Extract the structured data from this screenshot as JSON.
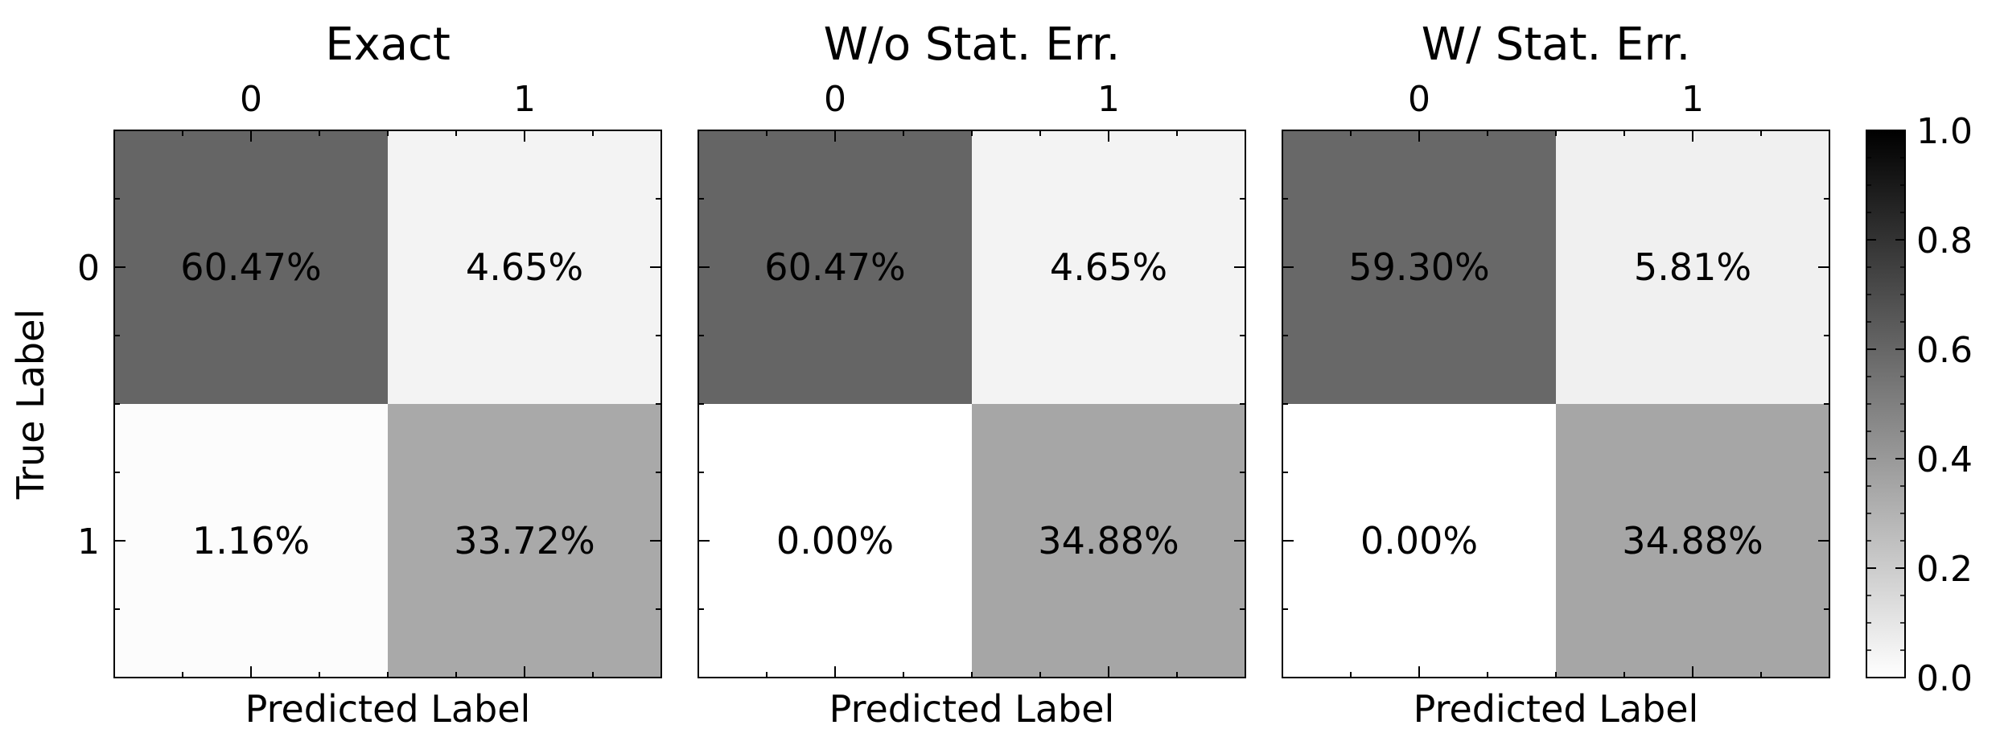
{
  "chart_data": [
    {
      "type": "heatmap",
      "title": "Exact",
      "xlabel": "Predicted Label",
      "ylabel": "True Label",
      "x_tick_labels": [
        "0",
        "1"
      ],
      "y_tick_labels": [
        "0",
        "1"
      ],
      "values": [
        [
          0.6047,
          0.0465
        ],
        [
          0.0116,
          0.3372
        ]
      ],
      "cell_labels": [
        [
          "60.47%",
          "4.65%"
        ],
        [
          "1.16%",
          "33.72%"
        ]
      ]
    },
    {
      "type": "heatmap",
      "title": "W/o Stat. Err.",
      "xlabel": "Predicted Label",
      "ylabel": "",
      "x_tick_labels": [
        "0",
        "1"
      ],
      "y_tick_labels": [],
      "values": [
        [
          0.6047,
          0.0465
        ],
        [
          0.0,
          0.3488
        ]
      ],
      "cell_labels": [
        [
          "60.47%",
          "4.65%"
        ],
        [
          "0.00%",
          "34.88%"
        ]
      ]
    },
    {
      "type": "heatmap",
      "title": "W/ Stat. Err.",
      "xlabel": "Predicted Label",
      "ylabel": "",
      "x_tick_labels": [
        "0",
        "1"
      ],
      "y_tick_labels": [],
      "values": [
        [
          0.593,
          0.0581
        ],
        [
          0.0,
          0.3488
        ]
      ],
      "cell_labels": [
        [
          "59.30%",
          "5.81%"
        ],
        [
          "0.00%",
          "34.88%"
        ]
      ]
    }
  ],
  "colorbar": {
    "colormap": "Greys",
    "range": [
      0.0,
      1.0
    ],
    "ticks": [
      0.0,
      0.2,
      0.4,
      0.6,
      0.8,
      1.0
    ],
    "tick_labels": [
      "0.0",
      "0.2",
      "0.4",
      "0.6",
      "0.8",
      "1.0"
    ]
  }
}
